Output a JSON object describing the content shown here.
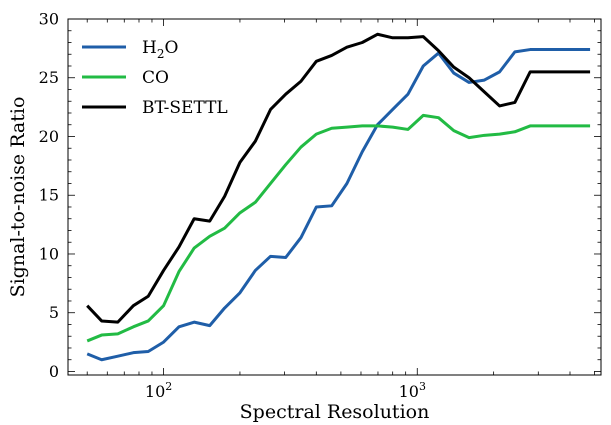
{
  "chart_data": {
    "type": "line",
    "title": "",
    "xlabel": "Spectral Resolution",
    "ylabel": "Signal-to-noise Ratio",
    "x_scale": "log",
    "xlim": [
      42,
      5300
    ],
    "ylim": [
      -0.3,
      30
    ],
    "y_ticks": [
      0,
      5,
      10,
      15,
      20,
      25,
      30
    ],
    "y_tick_labels": [
      "0",
      "5",
      "10",
      "15",
      "20",
      "25",
      "30"
    ],
    "x_major_ticks": [
      100,
      1000
    ],
    "x_tick_labels": [
      {
        "base": "10",
        "exp": "2"
      },
      {
        "base": "10",
        "exp": "3"
      }
    ],
    "grid": false,
    "legend_position": "top-left",
    "x": [
      50,
      57,
      66,
      76,
      87,
      100,
      115,
      132,
      152,
      174,
      200,
      230,
      264,
      303,
      348,
      400,
      460,
      528,
      607,
      697,
      800,
      919,
      1056,
      1213,
      1393,
      1600,
      1838,
      2111,
      2425,
      2786,
      3200,
      3676,
      4223,
      4800
    ],
    "series": [
      {
        "name": "H",
        "name_sub": "2",
        "name_suffix": "O",
        "color": "#1f5ea8",
        "values": [
          1.5,
          1.0,
          1.3,
          1.6,
          1.7,
          2.5,
          3.8,
          4.2,
          3.9,
          5.4,
          6.7,
          8.6,
          9.8,
          9.7,
          11.4,
          14.0,
          14.1,
          16.0,
          18.7,
          21.0,
          22.3,
          23.6,
          26.0,
          27.1,
          25.4,
          24.6,
          24.8,
          25.5,
          27.2,
          27.4,
          27.4,
          27.4,
          27.4,
          27.4
        ]
      },
      {
        "name": "CO",
        "color": "#22bb44",
        "values": [
          2.6,
          3.1,
          3.2,
          3.8,
          4.3,
          5.6,
          8.5,
          10.5,
          11.5,
          12.2,
          13.5,
          14.4,
          16.0,
          17.6,
          19.1,
          20.2,
          20.7,
          20.8,
          20.9,
          20.9,
          20.8,
          20.6,
          21.8,
          21.6,
          20.5,
          19.9,
          20.1,
          20.2,
          20.4,
          20.9,
          20.9,
          20.9,
          20.9,
          20.9
        ]
      },
      {
        "name": "BT-SETTL",
        "color": "#000000",
        "values": [
          5.6,
          4.3,
          4.2,
          5.6,
          6.4,
          8.6,
          10.6,
          13.0,
          12.8,
          14.9,
          17.8,
          19.6,
          22.3,
          23.6,
          24.7,
          26.4,
          26.9,
          27.6,
          28.0,
          28.7,
          28.4,
          28.4,
          28.5,
          27.3,
          25.9,
          25.0,
          23.8,
          22.6,
          22.9,
          25.5,
          25.5,
          25.5,
          25.5,
          25.5
        ]
      }
    ]
  }
}
